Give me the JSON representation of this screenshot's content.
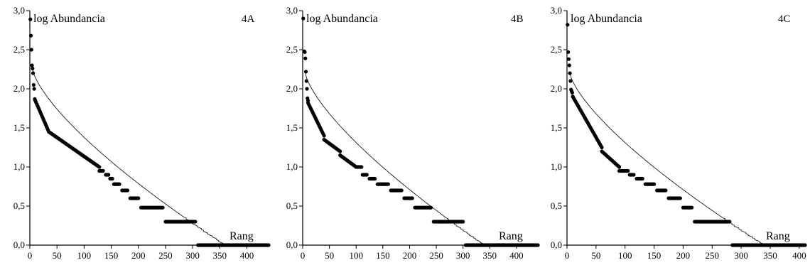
{
  "chart_data": [
    {
      "type": "scatter",
      "panel_label": "4A",
      "ylabel": "log Abundancia",
      "xlabel": "Rang",
      "xlim": [
        0,
        440
      ],
      "ylim": [
        0,
        3
      ],
      "xticks": [
        "0",
        "50",
        "100",
        "150",
        "200",
        "250",
        "300",
        "350",
        "400"
      ],
      "yticks": [
        "0,0",
        "0,5",
        "1,0",
        "1,5",
        "2,0",
        "2,5",
        "3,0"
      ],
      "series": [
        {
          "points": [
            [
              1,
              2.89
            ],
            [
              2,
              2.68
            ],
            [
              3,
              2.5
            ],
            [
              4,
              2.3
            ],
            [
              5,
              2.26
            ],
            [
              6,
              2.2
            ],
            [
              7,
              2.05
            ],
            [
              8,
              2.0
            ],
            [
              9,
              1.87
            ],
            [
              10,
              1.85
            ]
          ],
          "segments": [
            [
              10,
              1.85,
              35,
              1.45,
              "decreasing"
            ],
            [
              35,
              1.45,
              128,
              1.0,
              "decreasing"
            ],
            [
              128,
              0.95,
              135,
              0.95,
              "flat"
            ],
            [
              140,
              0.9,
              145,
              0.9,
              "flat"
            ],
            [
              148,
              0.85,
              152,
              0.85,
              "flat"
            ],
            [
              155,
              0.78,
              165,
              0.78,
              "flat"
            ],
            [
              170,
              0.7,
              180,
              0.7,
              "flat"
            ],
            [
              185,
              0.6,
              200,
              0.6,
              "flat"
            ],
            [
              205,
              0.48,
              245,
              0.48,
              "flat"
            ],
            [
              250,
              0.3,
              305,
              0.3,
              "flat"
            ],
            [
              310,
              0.0,
              440,
              0.0,
              "flat"
            ]
          ]
        }
      ],
      "fitted_curve": {
        "start": [
          5,
          2.25
        ],
        "end": [
          360,
          0.0
        ],
        "shape": "concave, stepped near the end"
      }
    },
    {
      "type": "scatter",
      "panel_label": "4B",
      "ylabel": "log Abundancia",
      "xlabel": "Rang",
      "xlim": [
        0,
        440
      ],
      "ylim": [
        0,
        3
      ],
      "xticks": [
        "0",
        "50",
        "100",
        "150",
        "200",
        "250",
        "300",
        "350",
        "400"
      ],
      "yticks": [
        "0,0",
        "0,5",
        "1,0",
        "1,5",
        "2,0",
        "2,5",
        "3,0"
      ],
      "series": [
        {
          "points": [
            [
              1,
              2.9
            ],
            [
              3,
              2.48
            ],
            [
              4,
              2.47
            ],
            [
              5,
              2.39
            ],
            [
              6,
              2.22
            ],
            [
              7,
              2.1
            ],
            [
              8,
              2.0
            ],
            [
              9,
              1.88
            ],
            [
              10,
              1.85
            ]
          ],
          "segments": [
            [
              10,
              1.82,
              40,
              1.4,
              "decreasing"
            ],
            [
              40,
              1.35,
              70,
              1.2,
              "decreasing"
            ],
            [
              70,
              1.15,
              100,
              1.0,
              "decreasing"
            ],
            [
              100,
              1.0,
              110,
              1.0,
              "flat"
            ],
            [
              112,
              0.9,
              120,
              0.9,
              "flat"
            ],
            [
              125,
              0.85,
              135,
              0.85,
              "flat"
            ],
            [
              140,
              0.78,
              160,
              0.78,
              "flat"
            ],
            [
              165,
              0.7,
              185,
              0.7,
              "flat"
            ],
            [
              190,
              0.6,
              205,
              0.6,
              "flat"
            ],
            [
              210,
              0.48,
              240,
              0.48,
              "flat"
            ],
            [
              245,
              0.3,
              300,
              0.3,
              "flat"
            ],
            [
              305,
              0.0,
              440,
              0.0,
              "flat"
            ]
          ]
        }
      ],
      "fitted_curve": {
        "start": [
          5,
          2.2
        ],
        "end": [
          340,
          0.0
        ],
        "shape": "concave, stepped near the end"
      }
    },
    {
      "type": "scatter",
      "panel_label": "4C",
      "ylabel": "log Abundancia",
      "xlabel": "Rang",
      "xlim": [
        0,
        410
      ],
      "ylim": [
        0,
        3
      ],
      "xticks": [
        "0",
        "50",
        "100",
        "150",
        "200",
        "250",
        "300",
        "350",
        "400"
      ],
      "yticks": [
        "0,0",
        "0,5",
        "1,0",
        "1,5",
        "2,0",
        "2,5",
        "3,0"
      ],
      "series": [
        {
          "points": [
            [
              1,
              2.82
            ],
            [
              2,
              2.47
            ],
            [
              3,
              2.38
            ],
            [
              4,
              2.3
            ],
            [
              5,
              2.2
            ],
            [
              6,
              2.1
            ],
            [
              7,
              1.99
            ],
            [
              8,
              1.97
            ],
            [
              9,
              1.95
            ],
            [
              10,
              1.9
            ]
          ],
          "segments": [
            [
              10,
              1.9,
              60,
              1.25,
              "decreasing"
            ],
            [
              60,
              1.2,
              90,
              1.0,
              "decreasing"
            ],
            [
              90,
              0.95,
              105,
              0.95,
              "flat"
            ],
            [
              108,
              0.9,
              115,
              0.9,
              "flat"
            ],
            [
              120,
              0.85,
              130,
              0.85,
              "flat"
            ],
            [
              135,
              0.78,
              150,
              0.78,
              "flat"
            ],
            [
              155,
              0.7,
              170,
              0.7,
              "flat"
            ],
            [
              175,
              0.6,
              195,
              0.6,
              "flat"
            ],
            [
              200,
              0.48,
              215,
              0.48,
              "flat"
            ],
            [
              220,
              0.3,
              280,
              0.3,
              "flat"
            ],
            [
              285,
              0.0,
              410,
              0.0,
              "flat"
            ]
          ]
        }
      ],
      "fitted_curve": {
        "start": [
          5,
          2.2
        ],
        "end": [
          340,
          0.0
        ],
        "shape": "concave, stepped near the end"
      }
    }
  ]
}
